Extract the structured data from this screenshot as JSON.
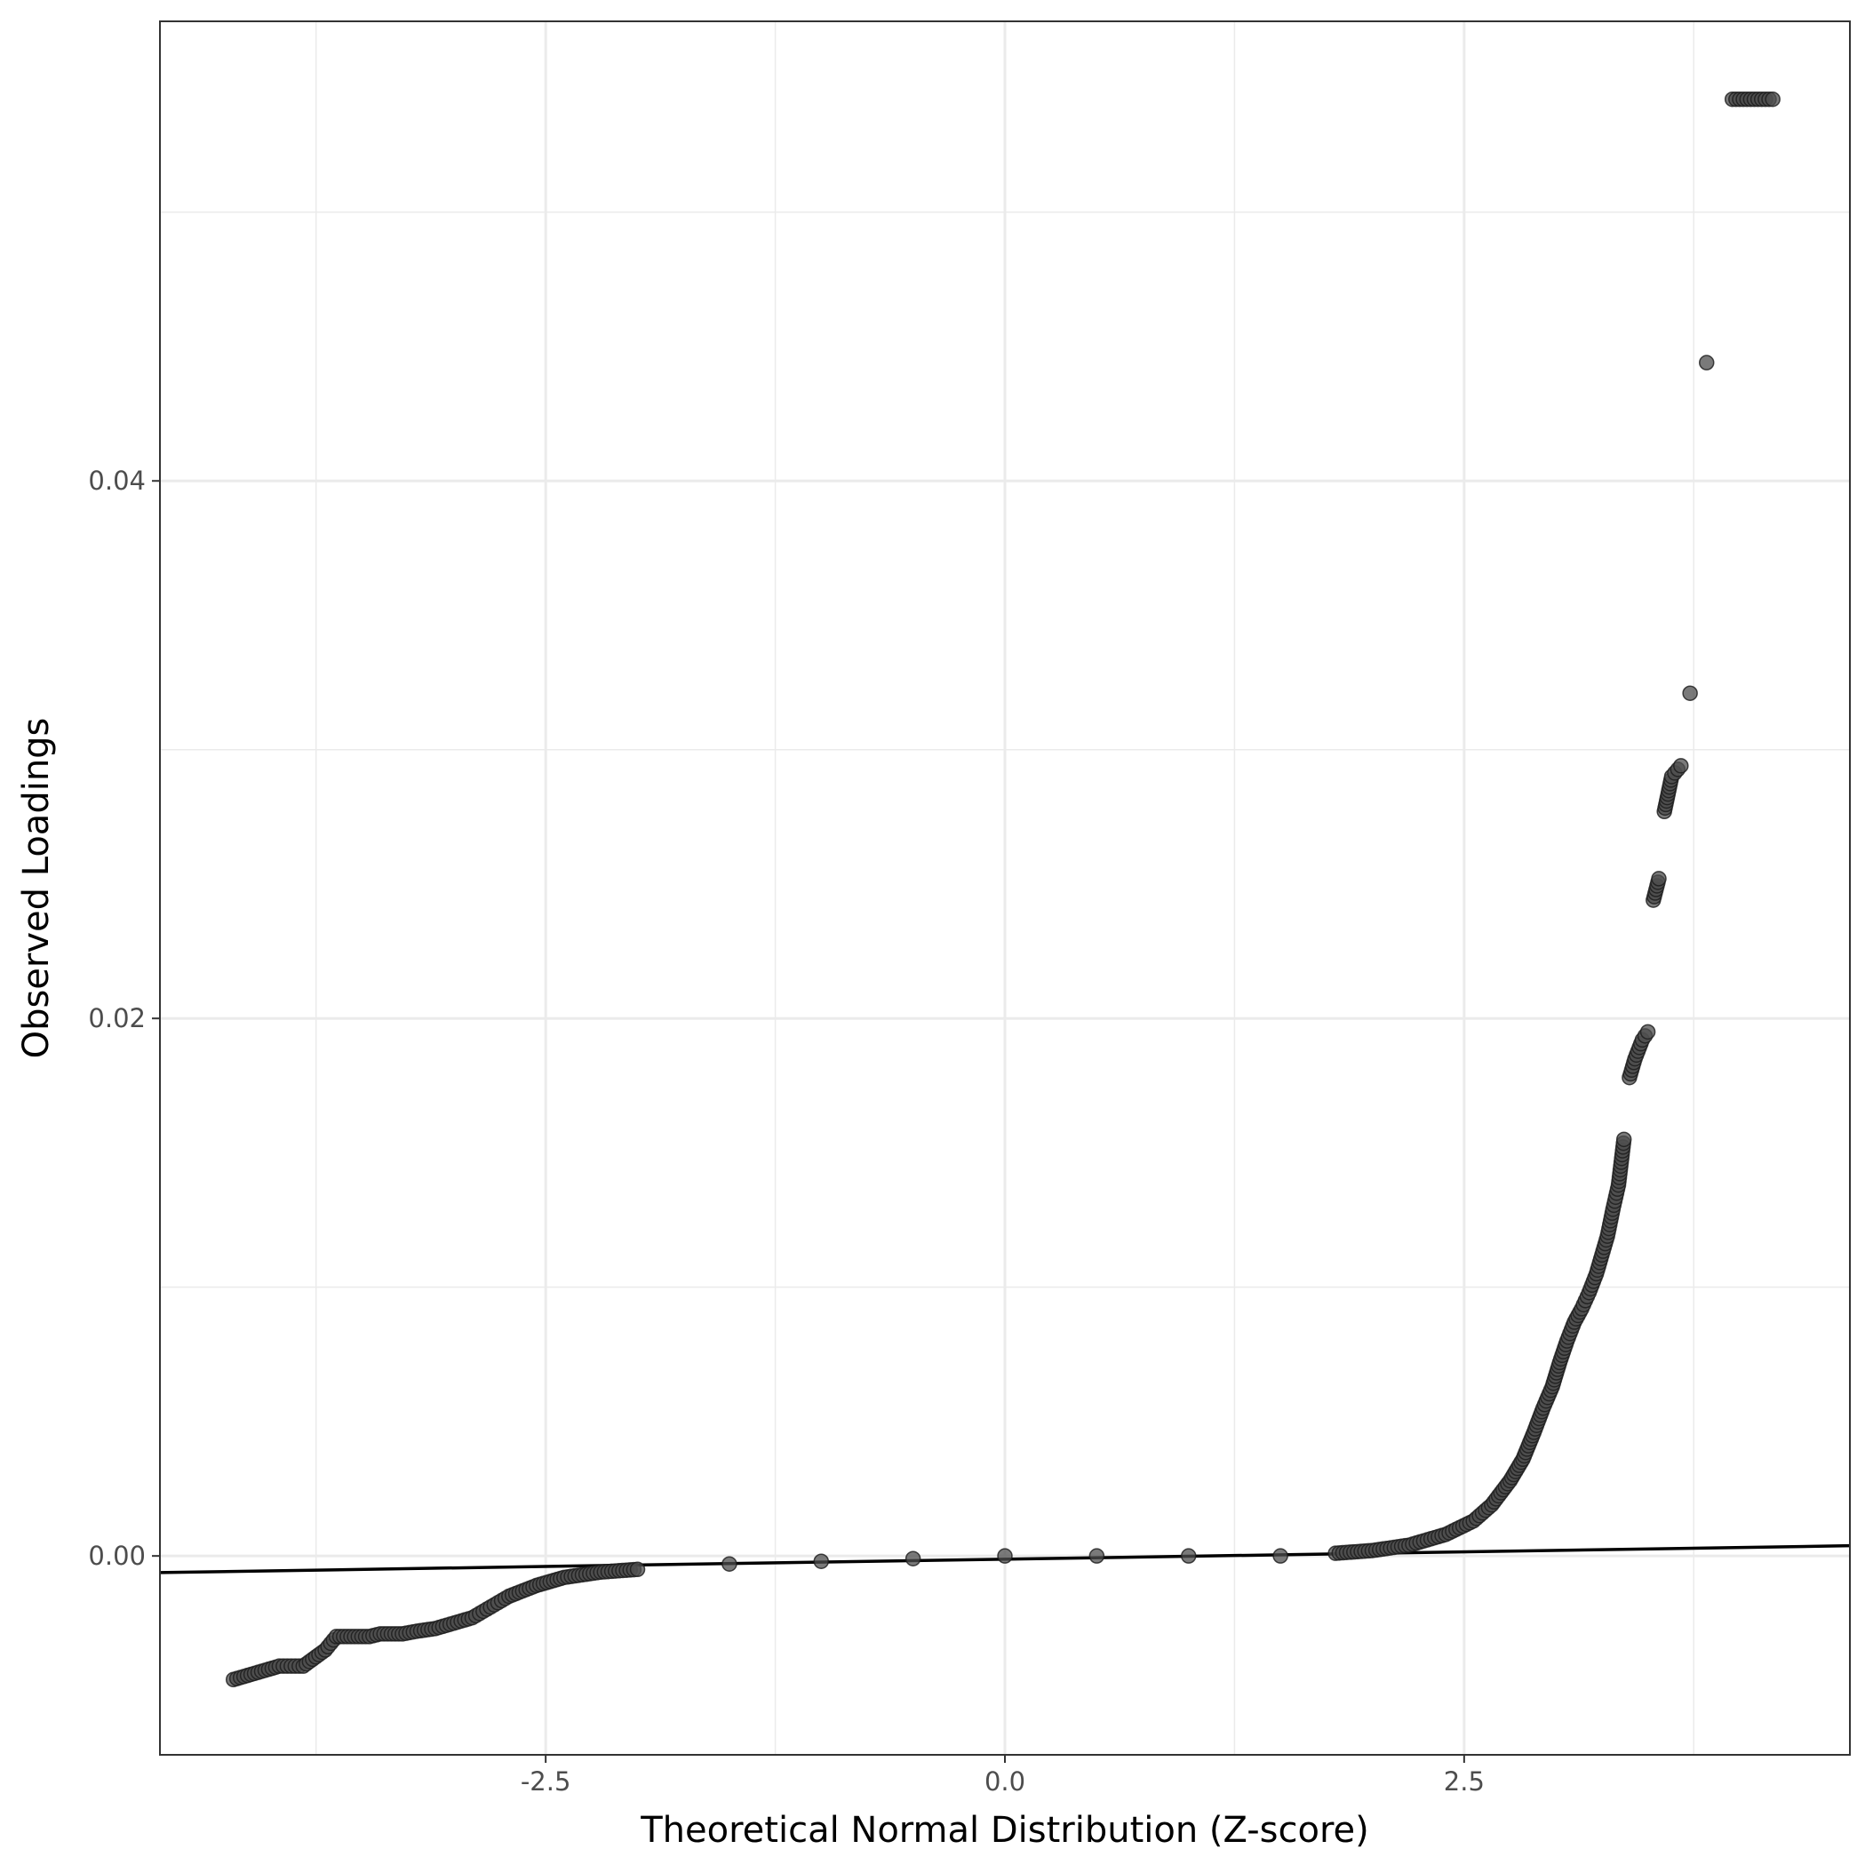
{
  "chart_data": {
    "type": "scatter",
    "xlabel": "Theoretical Normal Distribution (Z-score)",
    "ylabel": "Observed Loadings",
    "xlim": [
      -4.6,
      4.6
    ],
    "ylim": [
      -0.0074,
      0.0571
    ],
    "x_ticks": [
      {
        "value": -2.5,
        "label": "-2.5"
      },
      {
        "value": 0,
        "label": "0.0"
      },
      {
        "value": 2.5,
        "label": "2.5"
      }
    ],
    "y_ticks": [
      {
        "value": 0,
        "label": "0.00"
      },
      {
        "value": 0.02,
        "label": "0.02"
      },
      {
        "value": 0.04,
        "label": "0.04"
      }
    ],
    "grid": true,
    "reference_line": {
      "x": [
        -4.6,
        4.6
      ],
      "y": [
        -0.00062,
        0.00038
      ]
    },
    "point_color": "#4d4d4d",
    "line_color": "#000000",
    "points": {
      "x": [
        -4.2,
        -3.95,
        -3.82,
        -3.7,
        -3.64,
        -3.58,
        -3.52,
        -3.46,
        -3.4,
        -3.34,
        -3.28,
        -3.2,
        -3.1,
        -3.0,
        -2.9,
        -2.8,
        -2.7,
        -2.55,
        -2.4,
        -2.2,
        -2.0,
        -1.5,
        -1.0,
        -0.5,
        0.0,
        0.5,
        1.0,
        1.5,
        1.8,
        2.0,
        2.2,
        2.4,
        2.55,
        2.65,
        2.75,
        2.82,
        2.88,
        2.93,
        2.98,
        3.02,
        3.06,
        3.1,
        3.14,
        3.18,
        3.22,
        3.25,
        3.28,
        3.31,
        3.34,
        3.37,
        3.4,
        3.43,
        3.47,
        3.5,
        3.53,
        3.56,
        3.59,
        3.63,
        3.68,
        3.73,
        3.82,
        3.96,
        4.18
      ],
      "y": [
        -0.0046,
        -0.0041,
        -0.0041,
        -0.0035,
        -0.003,
        -0.003,
        -0.003,
        -0.003,
        -0.0029,
        -0.0029,
        -0.0029,
        -0.0028,
        -0.0027,
        -0.0025,
        -0.0023,
        -0.0019,
        -0.0015,
        -0.0011,
        -0.0008,
        -0.0006,
        -0.0005,
        -0.0003,
        -0.0002,
        -0.0001,
        0.0,
        0.0,
        0.0,
        0.0,
        0.0001,
        0.0002,
        0.0004,
        0.0008,
        0.0013,
        0.0019,
        0.0028,
        0.0036,
        0.0046,
        0.0055,
        0.0063,
        0.0072,
        0.008,
        0.0087,
        0.0092,
        0.0098,
        0.0105,
        0.0112,
        0.0119,
        0.0129,
        0.0138,
        0.0155,
        0.0178,
        0.0185,
        0.0192,
        0.0195,
        0.0244,
        0.0252,
        0.0277,
        0.029,
        0.0294,
        0.0321,
        0.0444,
        0.0542,
        0.0542
      ]
    }
  }
}
